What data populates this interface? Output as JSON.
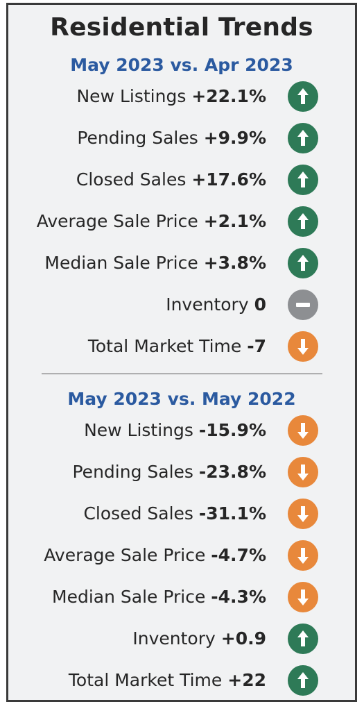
{
  "title": "Residential Trends",
  "sections": [
    {
      "heading": "May 2023 vs. Apr 2023",
      "rows": [
        {
          "label": "New Listings",
          "value": "+22.1%",
          "trend": "up",
          "icon": "arrow-up-icon"
        },
        {
          "label": "Pending Sales",
          "value": "+9.9%",
          "trend": "up",
          "icon": "arrow-up-icon"
        },
        {
          "label": "Closed Sales",
          "value": "+17.6%",
          "trend": "up",
          "icon": "arrow-up-icon"
        },
        {
          "label": "Average Sale Price",
          "value": "+2.1%",
          "trend": "up",
          "icon": "arrow-up-icon"
        },
        {
          "label": "Median Sale Price",
          "value": "+3.8%",
          "trend": "up",
          "icon": "arrow-up-icon"
        },
        {
          "label": "Inventory",
          "value": "0",
          "trend": "flat",
          "icon": "minus-icon"
        },
        {
          "label": "Total Market Time",
          "value": "-7",
          "trend": "down",
          "icon": "arrow-down-icon"
        }
      ]
    },
    {
      "heading": "May 2023 vs. May 2022",
      "rows": [
        {
          "label": "New Listings",
          "value": "-15.9%",
          "trend": "down",
          "icon": "arrow-down-icon"
        },
        {
          "label": "Pending Sales",
          "value": "-23.8%",
          "trend": "down",
          "icon": "arrow-down-icon"
        },
        {
          "label": "Closed Sales",
          "value": "-31.1%",
          "trend": "down",
          "icon": "arrow-down-icon"
        },
        {
          "label": "Average Sale Price",
          "value": "-4.7%",
          "trend": "down",
          "icon": "arrow-down-icon"
        },
        {
          "label": "Median Sale Price",
          "value": "-4.3%",
          "trend": "down",
          "icon": "arrow-down-icon"
        },
        {
          "label": "Inventory",
          "value": "+0.9",
          "trend": "up",
          "icon": "arrow-up-icon"
        },
        {
          "label": "Total Market Time",
          "value": "+22",
          "trend": "up",
          "icon": "arrow-up-icon"
        }
      ]
    }
  ],
  "colors": {
    "up": "#2e7a57",
    "down": "#e8883b",
    "flat": "#8d8f92",
    "heading": "#2b5aa0",
    "text": "#262626"
  }
}
